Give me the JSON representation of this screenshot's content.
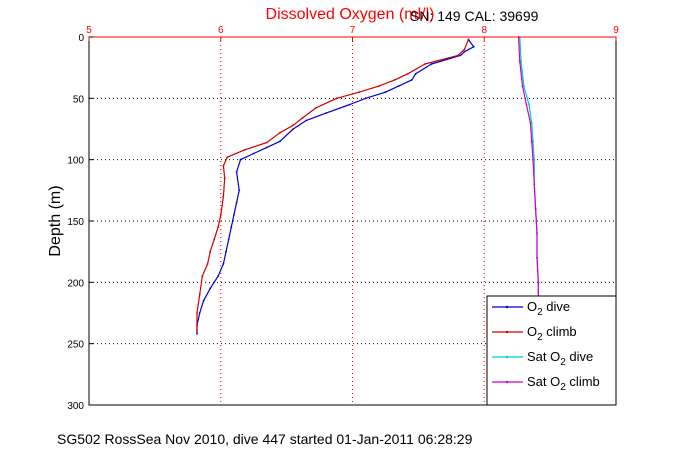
{
  "chart_data": {
    "type": "line",
    "title": "Dissolved Oxygen (ml/l)",
    "title_color": "#ff0000",
    "annotation": "SN: 149  CAL: 39699",
    "ylabel": "Depth (m)",
    "footer": "SG502 RossSea Nov 2010, dive 447 started 01-Jan-2011 06:28:29",
    "xlim": [
      5,
      9
    ],
    "ylim": [
      0,
      300
    ],
    "y_reversed": true,
    "x_axis_position": "top",
    "x_tick_color": "#ff0000",
    "x_ticks": [
      "5",
      "6",
      "7",
      "8",
      "9"
    ],
    "y_ticks": [
      "0",
      "50",
      "100",
      "150",
      "200",
      "250",
      "300"
    ],
    "grid": "dotted",
    "legend_position": "bottom-right",
    "series": [
      {
        "name": "O2 dive",
        "color": "#0000cc",
        "x": [
          7.88,
          7.92,
          7.85,
          7.82,
          7.6,
          7.48,
          7.45,
          7.35,
          7.25,
          7.1,
          6.98,
          6.8,
          6.65,
          6.55,
          6.45,
          6.35,
          6.25,
          6.15,
          6.12,
          6.14,
          6.12,
          6.1,
          6.08,
          6.06,
          6.04,
          6.02,
          5.98,
          5.92,
          5.87,
          5.84,
          5.82,
          5.82
        ],
        "y": [
          2,
          8,
          12,
          15,
          22,
          30,
          35,
          40,
          45,
          50,
          55,
          62,
          68,
          75,
          85,
          90,
          95,
          100,
          110,
          125,
          135,
          145,
          155,
          165,
          175,
          185,
          195,
          205,
          215,
          225,
          235,
          242
        ]
      },
      {
        "name": "O2 climb",
        "color": "#cc0000",
        "x": [
          7.88,
          7.85,
          7.8,
          7.55,
          7.42,
          7.32,
          7.2,
          7.05,
          6.88,
          6.72,
          6.62,
          6.55,
          6.45,
          6.35,
          6.18,
          6.05,
          6.02,
          6.03,
          6.02,
          6.0,
          5.98,
          5.95,
          5.92,
          5.9,
          5.86,
          5.84,
          5.82,
          5.82
        ],
        "y": [
          2,
          10,
          15,
          22,
          30,
          35,
          40,
          45,
          50,
          58,
          66,
          72,
          78,
          86,
          92,
          98,
          105,
          115,
          130,
          145,
          155,
          165,
          175,
          185,
          195,
          210,
          225,
          240
        ]
      },
      {
        "name": "Sat O2 dive",
        "color": "#00cccc",
        "x": [
          8.27,
          8.28,
          8.3,
          8.34,
          8.36,
          8.37,
          8.38,
          8.38,
          8.39,
          8.4,
          8.4,
          8.41,
          8.41,
          8.42
        ],
        "y": [
          0,
          20,
          40,
          55,
          70,
          85,
          100,
          120,
          140,
          160,
          180,
          200,
          220,
          240
        ]
      },
      {
        "name": "Sat O2 climb",
        "color": "#cc00cc",
        "x": [
          8.26,
          8.27,
          8.29,
          8.32,
          8.35,
          8.36,
          8.37,
          8.38,
          8.39,
          8.4,
          8.4,
          8.41,
          8.41,
          8.42
        ],
        "y": [
          0,
          20,
          40,
          55,
          70,
          85,
          100,
          120,
          140,
          160,
          180,
          200,
          220,
          240
        ]
      }
    ]
  }
}
